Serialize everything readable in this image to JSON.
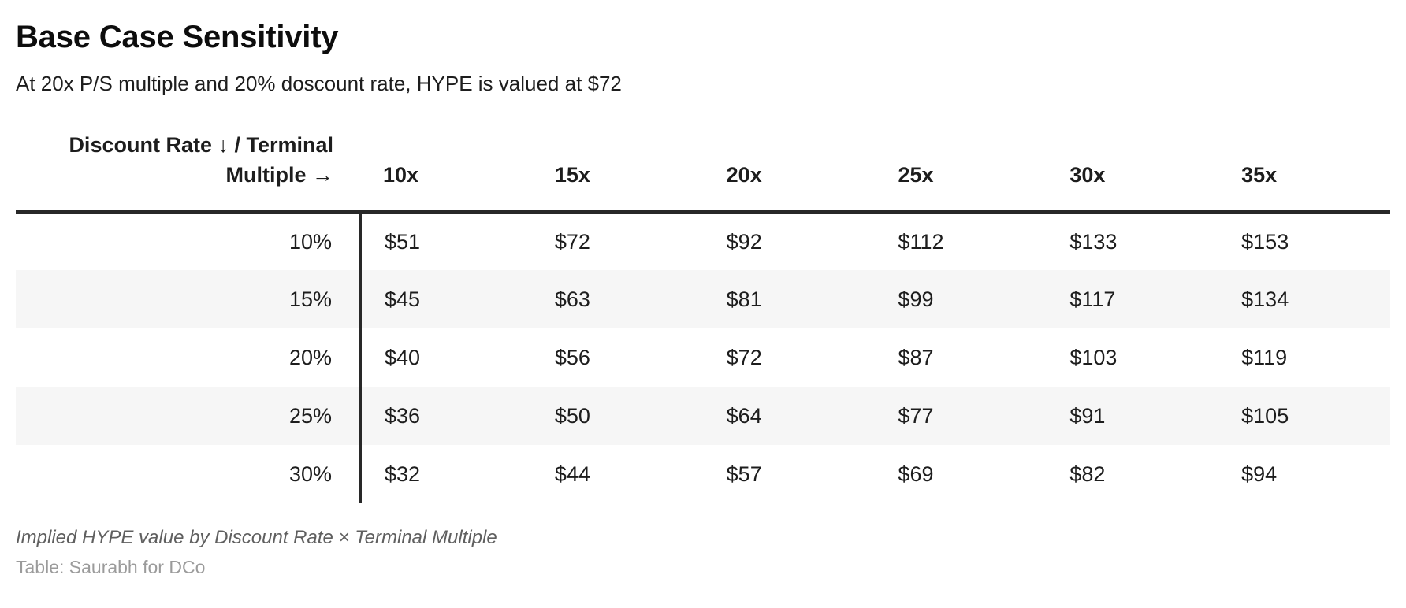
{
  "page": {
    "title": "Base Case Sensitivity",
    "subtitle": "At 20x P/S multiple and 20% doscount rate, HYPE is valued at $72"
  },
  "table": {
    "corner_label": "Discount Rate ↓ / Terminal Multiple →",
    "column_headers": [
      "10x",
      "15x",
      "20x",
      "25x",
      "30x",
      "35x"
    ],
    "rows": [
      {
        "label": "10%",
        "values": [
          "$51",
          "$72",
          "$92",
          "$112",
          "$133",
          "$153"
        ]
      },
      {
        "label": "15%",
        "values": [
          "$45",
          "$63",
          "$81",
          "$99",
          "$117",
          "$134"
        ]
      },
      {
        "label": "20%",
        "values": [
          "$40",
          "$56",
          "$72",
          "$87",
          "$103",
          "$119"
        ]
      },
      {
        "label": "25%",
        "values": [
          "$36",
          "$50",
          "$64",
          "$77",
          "$91",
          "$105"
        ]
      },
      {
        "label": "30%",
        "values": [
          "$32",
          "$44",
          "$57",
          "$69",
          "$82",
          "$94"
        ]
      }
    ]
  },
  "footer": {
    "caption": "Implied HYPE value by Discount Rate × Terminal Multiple",
    "credit": "Table: Saurabh for DCo"
  },
  "colors": {
    "rule": "#282828",
    "zebra": "#f6f6f6",
    "title": "#0d0d0d",
    "text": "#1d1d1d",
    "caption": "#5f5f5f",
    "credit": "#9b9b9b"
  },
  "chart_data": {
    "type": "table",
    "title": "Base Case Sensitivity",
    "subtitle": "At 20x P/S multiple and 20% doscount rate, HYPE is valued at $72",
    "row_dimension": "Discount Rate",
    "column_dimension": "Terminal Multiple",
    "columns": [
      "10x",
      "15x",
      "20x",
      "25x",
      "30x",
      "35x"
    ],
    "row_labels": [
      "10%",
      "15%",
      "20%",
      "25%",
      "30%"
    ],
    "values_usd": [
      [
        51,
        72,
        92,
        112,
        133,
        153
      ],
      [
        45,
        63,
        81,
        99,
        117,
        134
      ],
      [
        40,
        56,
        72,
        87,
        103,
        119
      ],
      [
        36,
        50,
        64,
        77,
        91,
        105
      ],
      [
        32,
        44,
        57,
        69,
        82,
        94
      ]
    ],
    "caption": "Implied HYPE value by Discount Rate × Terminal Multiple",
    "credit": "Table: Saurabh for DCo"
  }
}
